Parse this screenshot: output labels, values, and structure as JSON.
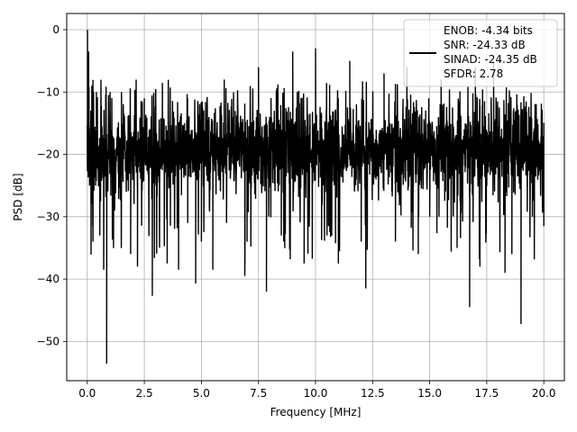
{
  "chart_data": {
    "type": "line",
    "title": "",
    "xlabel": "Frequency [MHz]",
    "ylabel": "PSD [dB]",
    "xlim": [
      -0.9,
      20.9
    ],
    "ylim": [
      -56.3,
      2.6
    ],
    "grid": true,
    "legend_position": "top-right",
    "x_ticks": [
      0.0,
      2.5,
      5.0,
      7.5,
      10.0,
      12.5,
      15.0,
      17.5,
      20.0
    ],
    "x_tick_labels": [
      "0.0",
      "2.5",
      "5.0",
      "7.5",
      "10.0",
      "12.5",
      "15.0",
      "17.5",
      "20.0"
    ],
    "y_ticks": [
      0,
      -10,
      -20,
      -30,
      -40,
      -50
    ],
    "y_tick_labels": [
      "0",
      "−10",
      "−20",
      "−30",
      "−40",
      "−50"
    ],
    "legend_lines": [
      "ENOB: -4.34 bits",
      "SNR: -24.33 dB",
      "SINAD: -24.35 dB",
      "SFDR: 2.78"
    ],
    "series": [
      {
        "color": "#000000",
        "x_range": [
          0,
          20
        ],
        "noise_band_approx": [
          -27,
          -12
        ],
        "points": [
          [
            0.0,
            -19
          ],
          [
            0.01,
            0.0
          ],
          [
            0.03,
            -12
          ],
          [
            0.06,
            -3.5
          ],
          [
            0.1,
            -25
          ],
          [
            0.2,
            -9
          ],
          [
            0.25,
            -34
          ],
          [
            0.4,
            -10
          ],
          [
            0.55,
            -33
          ],
          [
            0.72,
            -38.5
          ],
          [
            0.85,
            -53.6
          ],
          [
            1.0,
            -10
          ],
          [
            1.2,
            -29
          ],
          [
            1.5,
            -10
          ],
          [
            1.9,
            -36
          ],
          [
            2.2,
            -38
          ],
          [
            2.5,
            -11
          ],
          [
            2.85,
            -42.7
          ],
          [
            3.0,
            -9.5
          ],
          [
            3.5,
            -37.5
          ],
          [
            4.0,
            -38.5
          ],
          [
            4.4,
            -31
          ],
          [
            4.75,
            -40.7
          ],
          [
            5.0,
            -34
          ],
          [
            5.5,
            -38.5
          ],
          [
            6.0,
            -8
          ],
          [
            6.1,
            -31
          ],
          [
            6.9,
            -39.5
          ],
          [
            7.0,
            -34
          ],
          [
            7.5,
            -6
          ],
          [
            7.85,
            -42
          ],
          [
            8.5,
            -33
          ],
          [
            9.0,
            -3.5
          ],
          [
            9.5,
            -37.5
          ],
          [
            10.0,
            -3
          ],
          [
            10.5,
            -33
          ],
          [
            11.0,
            -37.5
          ],
          [
            11.5,
            -5
          ],
          [
            12.0,
            -34
          ],
          [
            12.2,
            -41.5
          ],
          [
            13.0,
            -7
          ],
          [
            13.5,
            -34
          ],
          [
            14.0,
            -6
          ],
          [
            14.5,
            -36
          ],
          [
            15.0,
            -30
          ],
          [
            15.5,
            -8
          ],
          [
            16.2,
            -35
          ],
          [
            16.75,
            -44.5
          ],
          [
            17.0,
            -6
          ],
          [
            17.2,
            -38
          ],
          [
            17.8,
            -5
          ],
          [
            18.3,
            -39
          ],
          [
            18.6,
            -36
          ],
          [
            19.0,
            -47.2
          ],
          [
            19.5,
            -30
          ],
          [
            20.0,
            -31.5
          ]
        ]
      }
    ]
  }
}
